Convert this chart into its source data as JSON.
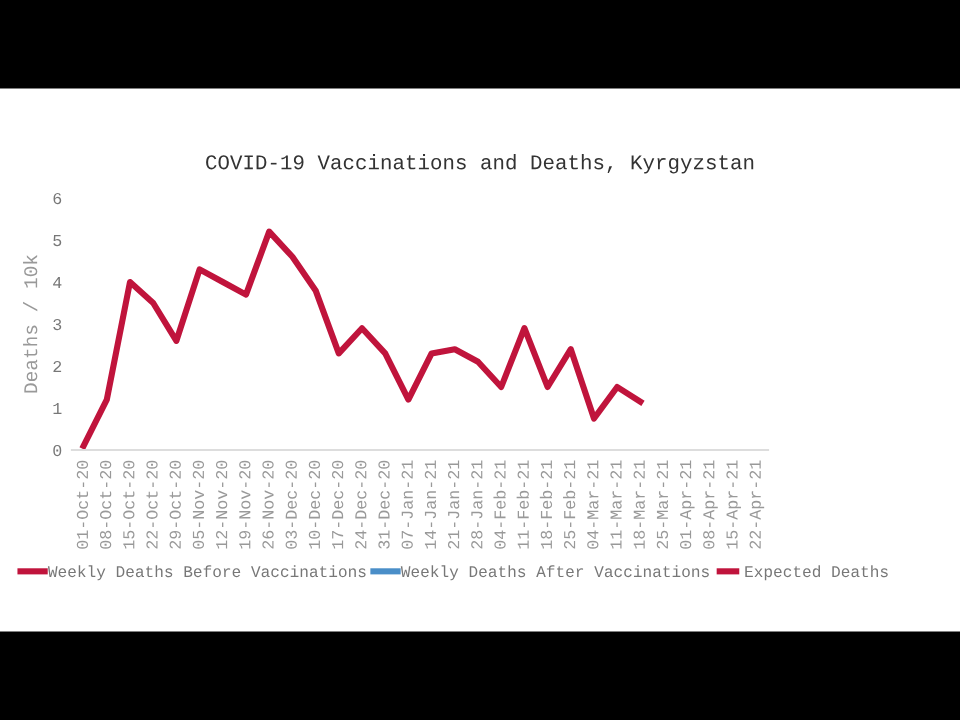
{
  "chart_data": {
    "type": "line",
    "title": "COVID-19 Vaccinations and Deaths, Kyrgyzstan",
    "ylabel": "Deaths / 10k",
    "categories": [
      "01-Oct-20",
      "08-Oct-20",
      "15-Oct-20",
      "22-Oct-20",
      "29-Oct-20",
      "05-Nov-20",
      "12-Nov-20",
      "19-Nov-20",
      "26-Nov-20",
      "03-Dec-20",
      "10-Dec-20",
      "17-Dec-20",
      "24-Dec-20",
      "31-Dec-20",
      "07-Jan-21",
      "14-Jan-21",
      "21-Jan-21",
      "28-Jan-21",
      "04-Feb-21",
      "11-Feb-21",
      "18-Feb-21",
      "25-Feb-21",
      "04-Mar-21",
      "11-Mar-21",
      "18-Mar-21",
      "25-Mar-21",
      "01-Apr-21",
      "08-Apr-21",
      "15-Apr-21",
      "22-Apr-21"
    ],
    "series": [
      {
        "name": "Weekly Deaths Before Vaccinations",
        "color": "#c0143c",
        "line_style": "solid",
        "values": [
          0.1,
          1.2,
          4.0,
          3.5,
          2.6,
          4.3,
          4.0,
          3.7,
          5.2,
          4.6,
          3.8,
          2.3,
          2.9,
          2.3,
          1.2,
          2.3,
          2.4,
          2.1,
          1.5,
          2.9,
          1.5,
          2.4,
          0.75,
          1.5,
          1.15,
          null,
          null,
          null,
          null,
          null
        ]
      },
      {
        "name": "Weekly Deaths After Vaccinations",
        "color": "#4a8ec8",
        "line_style": "solid",
        "values": [
          null,
          null,
          null,
          null,
          null,
          null,
          null,
          null,
          null,
          null,
          null,
          null,
          null,
          null,
          null,
          null,
          null,
          null,
          null,
          null,
          null,
          null,
          null,
          null,
          null,
          null,
          null,
          null,
          null,
          null
        ]
      },
      {
        "name": "Expected Deaths",
        "color": "#c0143c",
        "line_style": "dashed",
        "values": [
          null,
          null,
          null,
          null,
          null,
          null,
          null,
          null,
          null,
          null,
          null,
          null,
          null,
          null,
          null,
          null,
          null,
          null,
          null,
          null,
          null,
          null,
          null,
          null,
          null,
          null,
          null,
          null,
          null,
          null
        ]
      }
    ],
    "ylim": [
      0,
      6
    ],
    "yticks": [
      0,
      1,
      2,
      3,
      4,
      5,
      6
    ],
    "grid": false,
    "legend": "bottom",
    "marker": "none"
  }
}
